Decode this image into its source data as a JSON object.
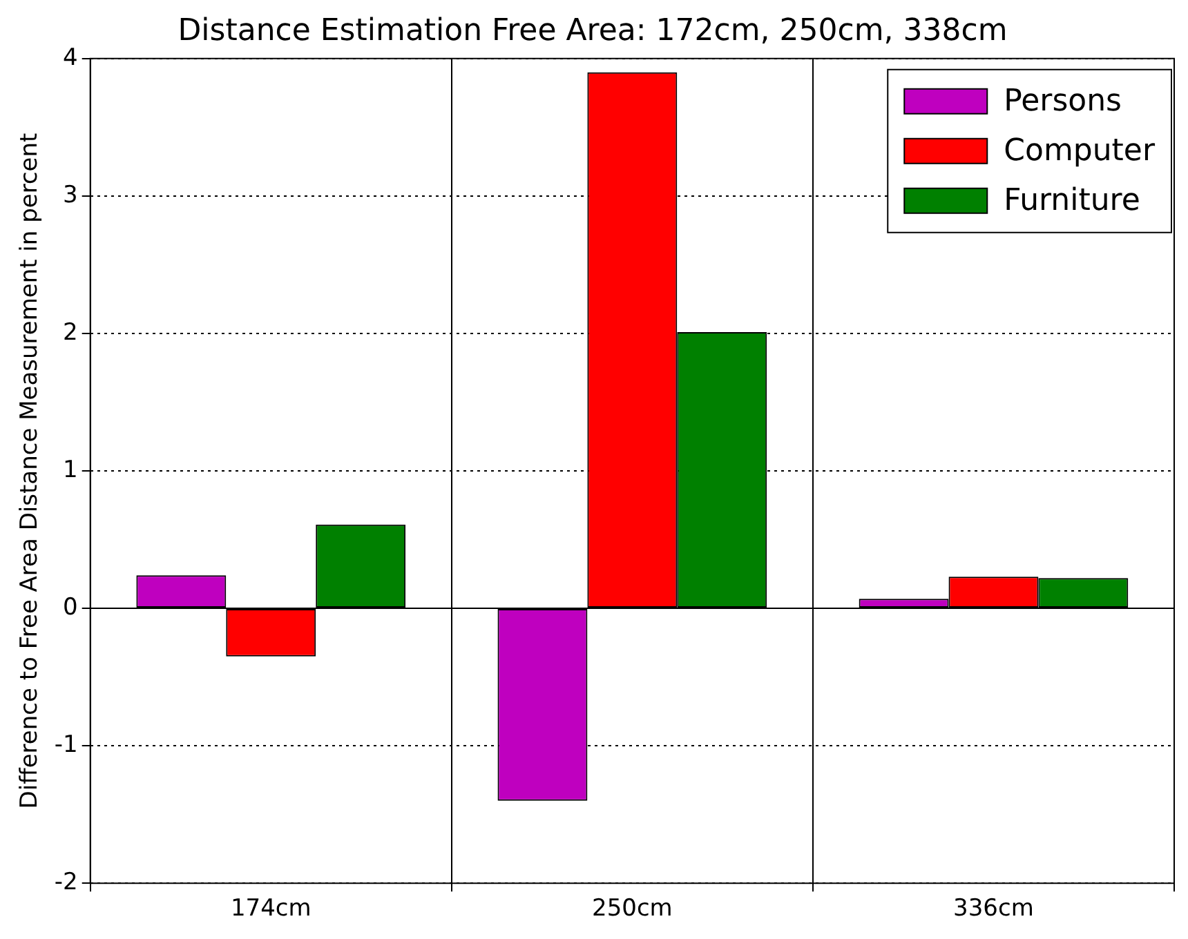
{
  "chart_data": {
    "type": "bar",
    "title": "Distance Estimation Free Area: 172cm, 250cm, 338cm",
    "ylabel": "Difference to Free Area Distance Measurement in percent",
    "categories": [
      "174cm",
      "250cm",
      "336cm"
    ],
    "series": [
      {
        "name": "Persons",
        "color": "#bf00bf",
        "values": [
          0.24,
          -1.4,
          0.07
        ]
      },
      {
        "name": "Computer",
        "color": "#ff0000",
        "values": [
          -0.35,
          3.9,
          0.23
        ]
      },
      {
        "name": "Furniture",
        "color": "#008000",
        "values": [
          0.61,
          2.01,
          0.22
        ]
      }
    ],
    "ylim": [
      -2,
      4
    ],
    "yticks": [
      -2,
      -1,
      0,
      1,
      2,
      3,
      4
    ],
    "grid": true,
    "legend": "top right"
  }
}
